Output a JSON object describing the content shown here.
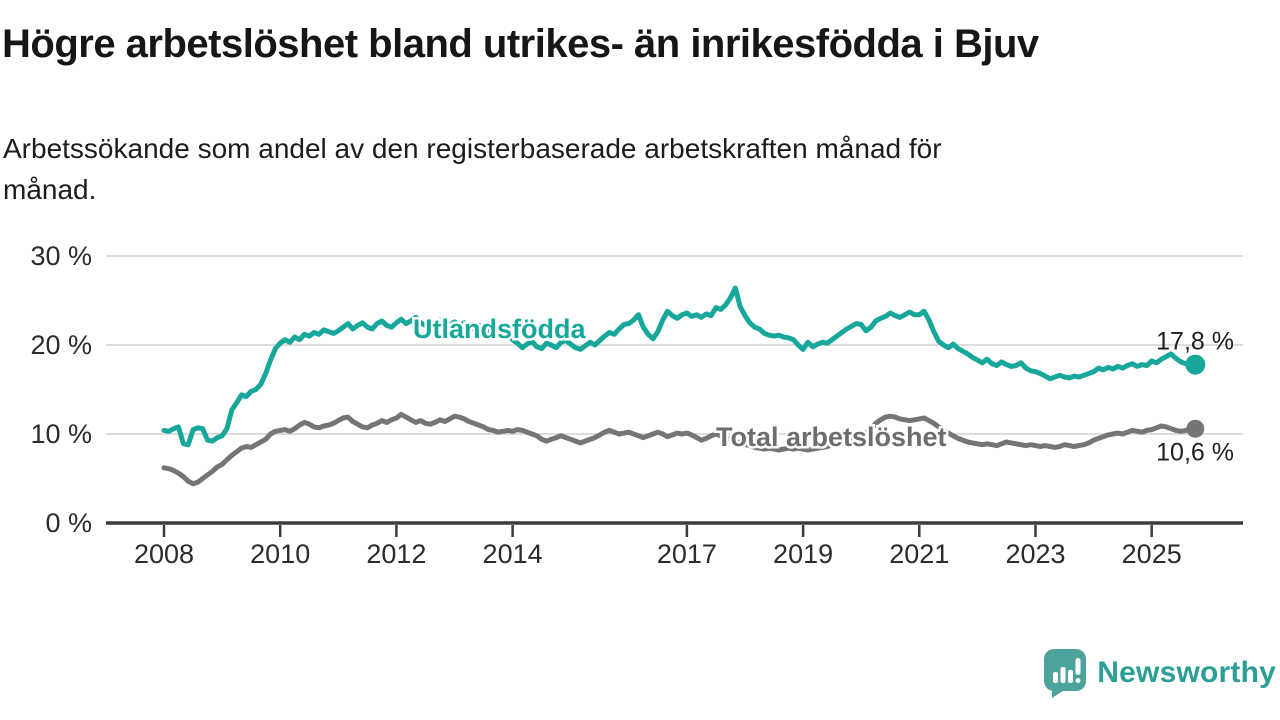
{
  "header": {
    "title": "Högre arbetslöshet bland utrikes- än inrikesfödda i Bjuv",
    "subtitle": "Arbetssökande som andel av den registerbaserade arbetskraften månad för månad.",
    "subtitle_lines": [
      "Arbetssökande som andel av den registerbaserade arbetskraften månad för",
      "månad."
    ]
  },
  "branding": {
    "wordmark": "Newsworthy",
    "logo_icon": "speech-bubble-bar-chart-exclamation",
    "brand_color": "#2b9e96"
  },
  "colors": {
    "accent_teal": "#17a79b",
    "line_gray": "#757575",
    "grid_line": "#dcdcdc",
    "axis_line": "#3b3b3b",
    "text_dark": "#1f1f1f"
  },
  "chart_data": {
    "type": "line",
    "title": "Högre arbetslöshet bland utrikes- än inrikesfödda i Bjuv",
    "x_start": "2008-01",
    "x_end": "2025-10",
    "x_unit": "month",
    "xlabel": "",
    "ylabel": "",
    "grid": "horizontal",
    "legend_position": "inline-labels",
    "x_tick_years": [
      2008,
      2010,
      2012,
      2014,
      2017,
      2019,
      2021,
      2023,
      2025
    ],
    "x_tick_labels": [
      "2008",
      "2010",
      "2012",
      "2014",
      "2017",
      "2019",
      "2021",
      "2023",
      "2025"
    ],
    "y_ticks": [
      0,
      10,
      20,
      30
    ],
    "y_tick_labels": [
      "0 %",
      "10 %",
      "20 %",
      "30 %"
    ],
    "ylim": [
      0,
      32
    ],
    "series": [
      {
        "name": "Utlandsfödda",
        "color": "#17a79b",
        "end_label": "17,8 %",
        "end_value": 17.8,
        "values": [
          10.4,
          10.3,
          10.6,
          10.8,
          8.9,
          8.8,
          10.5,
          10.7,
          10.6,
          9.3,
          9.2,
          9.6,
          9.8,
          10.6,
          12.7,
          13.5,
          14.4,
          14.2,
          14.8,
          15.0,
          15.6,
          16.8,
          18.3,
          19.6,
          20.2,
          20.6,
          20.3,
          20.9,
          20.6,
          21.2,
          21.0,
          21.4,
          21.2,
          21.7,
          21.5,
          21.3,
          21.6,
          22.0,
          22.4,
          21.8,
          22.2,
          22.5,
          22.0,
          21.8,
          22.4,
          22.7,
          22.2,
          22.0,
          22.5,
          22.9,
          22.4,
          22.7,
          23.1,
          22.5,
          22.2,
          22.0,
          22.4,
          22.8,
          22.4,
          22.2,
          22.6,
          22.2,
          22.5,
          22.0,
          21.8,
          22.2,
          21.7,
          21.4,
          21.8,
          21.3,
          21.0,
          21.2,
          20.6,
          20.2,
          19.7,
          20.1,
          20.4,
          19.8,
          19.6,
          20.2,
          20.0,
          19.7,
          20.3,
          20.5,
          20.1,
          19.7,
          19.5,
          19.9,
          20.3,
          20.0,
          20.5,
          21.0,
          21.4,
          21.2,
          21.8,
          22.3,
          22.4,
          22.8,
          23.4,
          22.0,
          21.2,
          20.7,
          21.5,
          22.8,
          23.8,
          23.3,
          23.0,
          23.4,
          23.6,
          23.2,
          23.4,
          23.1,
          23.5,
          23.3,
          24.2,
          24.0,
          24.5,
          25.3,
          26.4,
          24.3,
          23.3,
          22.5,
          22.0,
          21.8,
          21.3,
          21.1,
          21.0,
          21.1,
          20.9,
          20.8,
          20.6,
          20.0,
          19.5,
          20.3,
          19.8,
          20.1,
          20.3,
          20.2,
          20.6,
          21.0,
          21.4,
          21.8,
          22.1,
          22.4,
          22.3,
          21.6,
          22.0,
          22.7,
          23.0,
          23.2,
          23.6,
          23.3,
          23.1,
          23.4,
          23.7,
          23.4,
          23.4,
          23.8,
          22.8,
          21.5,
          20.4,
          20.0,
          19.7,
          20.1,
          19.6,
          19.3,
          19.0,
          18.6,
          18.3,
          18.0,
          18.4,
          17.9,
          17.7,
          18.1,
          17.8,
          17.6,
          17.7,
          18.0,
          17.4,
          17.1,
          17.0,
          16.8,
          16.5,
          16.2,
          16.4,
          16.6,
          16.4,
          16.3,
          16.5,
          16.4,
          16.6,
          16.8,
          17.0,
          17.4,
          17.2,
          17.5,
          17.3,
          17.6,
          17.4,
          17.7,
          17.9,
          17.6,
          17.8,
          17.7,
          18.2,
          18.0,
          18.4,
          18.7,
          19.0,
          18.5,
          18.1,
          17.9,
          18.0,
          17.8
        ]
      },
      {
        "name": "Total arbetslöshet",
        "color": "#757575",
        "end_label": "10,6 %",
        "end_value": 10.6,
        "values": [
          6.2,
          6.1,
          5.9,
          5.6,
          5.2,
          4.7,
          4.4,
          4.6,
          5.0,
          5.4,
          5.8,
          6.3,
          6.6,
          7.1,
          7.6,
          8.0,
          8.4,
          8.6,
          8.5,
          8.8,
          9.1,
          9.4,
          10.0,
          10.3,
          10.4,
          10.5,
          10.3,
          10.6,
          11.0,
          11.3,
          11.1,
          10.8,
          10.7,
          10.9,
          11.0,
          11.2,
          11.5,
          11.8,
          11.9,
          11.4,
          11.1,
          10.8,
          10.7,
          11.0,
          11.2,
          11.5,
          11.3,
          11.6,
          11.8,
          12.2,
          11.9,
          11.6,
          11.3,
          11.5,
          11.2,
          11.1,
          11.3,
          11.6,
          11.4,
          11.7,
          12.0,
          11.9,
          11.7,
          11.4,
          11.2,
          11.0,
          10.8,
          10.5,
          10.4,
          10.2,
          10.3,
          10.4,
          10.3,
          10.5,
          10.4,
          10.2,
          10.0,
          9.8,
          9.4,
          9.2,
          9.4,
          9.6,
          9.8,
          9.6,
          9.4,
          9.2,
          9.0,
          9.2,
          9.4,
          9.6,
          9.9,
          10.2,
          10.4,
          10.2,
          10.0,
          10.1,
          10.2,
          10.0,
          9.8,
          9.6,
          9.8,
          10.0,
          10.2,
          10.0,
          9.7,
          9.9,
          10.1,
          10.0,
          10.1,
          9.9,
          9.6,
          9.3,
          9.5,
          9.8,
          10.0,
          9.8,
          9.6,
          9.4,
          9.2,
          9.0,
          8.8,
          8.7,
          8.5,
          8.4,
          8.3,
          8.4,
          8.3,
          8.2,
          8.3,
          8.4,
          8.3,
          8.4,
          8.3,
          8.2,
          8.3,
          8.4,
          8.5,
          8.6,
          8.8,
          8.7,
          8.9,
          9.1,
          9.3,
          9.6,
          9.9,
          10.1,
          10.5,
          11.2,
          11.6,
          11.9,
          12.0,
          11.9,
          11.7,
          11.6,
          11.5,
          11.6,
          11.7,
          11.8,
          11.5,
          11.2,
          10.8,
          10.4,
          10.1,
          9.8,
          9.5,
          9.3,
          9.1,
          9.0,
          8.9,
          8.8,
          8.9,
          8.8,
          8.7,
          8.9,
          9.1,
          9.0,
          8.9,
          8.8,
          8.7,
          8.8,
          8.7,
          8.6,
          8.7,
          8.6,
          8.5,
          8.6,
          8.8,
          8.7,
          8.6,
          8.7,
          8.8,
          9.0,
          9.3,
          9.5,
          9.7,
          9.9,
          10.0,
          10.1,
          10.0,
          10.2,
          10.4,
          10.3,
          10.2,
          10.4,
          10.5,
          10.7,
          10.9,
          10.8,
          10.6,
          10.4,
          10.3,
          10.4,
          10.5,
          10.6
        ]
      }
    ]
  }
}
